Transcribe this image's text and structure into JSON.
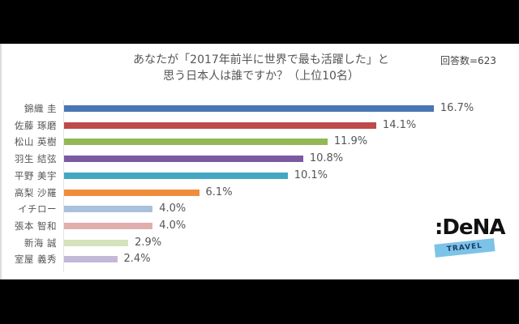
{
  "title_line1": "あなたが「2017年前半に世界で最も活躍した」と",
  "title_line2": "思う日本人は誰ですか？（上位10名）",
  "respondents": "回答数=623",
  "logo": {
    "brand": ":DeNA",
    "sub": "TRAVEL"
  },
  "chart_data": {
    "type": "bar",
    "orientation": "horizontal",
    "title": "あなたが「2017年前半に世界で最も活躍した」と思う日本人は誰ですか？（上位10名）",
    "subtitle": "回答数=623",
    "categories": [
      "錦織 圭",
      "佐藤 琢磨",
      "松山 英樹",
      "羽生 結弦",
      "平野 美宇",
      "高梨 沙羅",
      "イチロー",
      "張本 智和",
      "新海 誠",
      "室屋 義秀"
    ],
    "values": [
      16.7,
      14.1,
      11.9,
      10.8,
      10.1,
      6.1,
      4.0,
      4.0,
      2.9,
      2.4
    ],
    "labels": [
      "16.7%",
      "14.1%",
      "11.9%",
      "10.8%",
      "10.1%",
      "6.1%",
      "4.0%",
      "4.0%",
      "2.9%",
      "2.4%"
    ],
    "colors": [
      "#4a76b2",
      "#bf4a4a",
      "#93b755",
      "#7a5aa0",
      "#44a7c1",
      "#ef8d3c",
      "#a9c0de",
      "#e0aeac",
      "#d5e2bc",
      "#c4b8d8"
    ],
    "unit": "%",
    "xlabel": "",
    "ylabel": "",
    "grid": false,
    "legend": "none"
  }
}
